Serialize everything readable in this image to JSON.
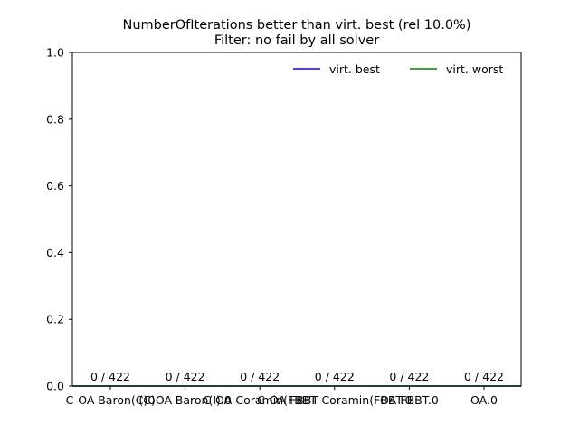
{
  "chart_data": {
    "type": "bar",
    "title": "NumberOfIterations better than virt. best (rel 10.0%)",
    "subtitle": "Filter: no fail by all solver",
    "xlabel": "",
    "ylabel": "",
    "ylim": [
      0,
      1.0
    ],
    "yticks": [
      "0.0",
      "0.2",
      "0.4",
      "0.6",
      "0.8",
      "1.0"
    ],
    "categories": [
      "C-OA-Baron(C)",
      "C-OA-Baron(I).0",
      "C-OA-Coramin(FBBT-Coramin).0",
      "C-OA-FBBT-Coramin(FBBT.0",
      "OA-FBBT.0",
      "OA.0"
    ],
    "tick_labels": [
      "C-OA-Baron(C)0",
      "(C)OA-Baron(I).0",
      "C-OA-Coramin(FBBT",
      "C-OA-FBBT-Coramin(FBBT.0",
      "OA-FBBT.0",
      "OA.0"
    ],
    "values": [
      0,
      0,
      0,
      0,
      0,
      0
    ],
    "bar_labels": [
      "0 / 422",
      "0 / 422",
      "0 / 422",
      "0 / 422",
      "0 / 422",
      "0 / 422"
    ],
    "legend_position": "top-right",
    "grid": false,
    "series": [
      {
        "name": "virt. best",
        "color": "#0000ff",
        "values": [
          0,
          0,
          0,
          0,
          0,
          0
        ]
      },
      {
        "name": "virt. worst",
        "color": "#008000",
        "values": [
          0,
          0,
          0,
          0,
          0,
          0
        ]
      }
    ]
  }
}
